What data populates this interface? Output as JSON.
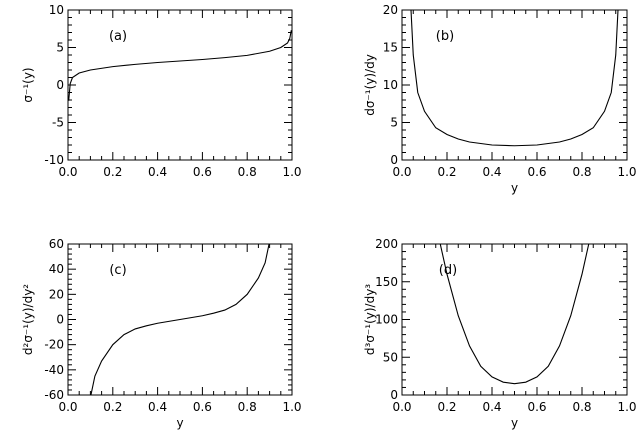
{
  "chart_data": [
    {
      "type": "line",
      "panel_label": "(a)",
      "xlabel": "",
      "ylabel": "σ⁻¹(y)",
      "xlim": [
        0.0,
        1.0
      ],
      "ylim": [
        -10,
        10
      ],
      "xticks": [
        "0.0",
        "0.2",
        "0.4",
        "0.6",
        "0.8",
        "1.0"
      ],
      "yticks": [
        "-10",
        "-5",
        "0",
        "5",
        "10"
      ],
      "xtick_values": [
        0.0,
        0.2,
        0.4,
        0.6,
        0.8,
        1.0
      ],
      "ytick_values": [
        -10,
        -5,
        0,
        5,
        10
      ],
      "series": [
        {
          "color": "#000000",
          "x": [
            0.003,
            0.01,
            0.02,
            0.05,
            0.1,
            0.2,
            0.3,
            0.4,
            0.5,
            0.6,
            0.7,
            0.8,
            0.9,
            0.95,
            0.98,
            0.99,
            0.997
          ],
          "y": [
            -2.1,
            0.2,
            1.0,
            1.6,
            2.0,
            2.45,
            2.75,
            3.0,
            3.2,
            3.4,
            3.65,
            3.95,
            4.5,
            5.0,
            5.6,
            6.2,
            7.3
          ]
        }
      ]
    },
    {
      "type": "line",
      "panel_label": "(b)",
      "xlabel": "y",
      "ylabel": "dσ⁻¹(y)/dy",
      "xlim": [
        0.0,
        1.0
      ],
      "ylim": [
        0,
        20
      ],
      "xticks": [
        "0.0",
        "0.2",
        "0.4",
        "0.6",
        "0.8",
        "1.0"
      ],
      "yticks": [
        "0",
        "5",
        "10",
        "15",
        "20"
      ],
      "xtick_values": [
        0.0,
        0.2,
        0.4,
        0.6,
        0.8,
        1.0
      ],
      "ytick_values": [
        0,
        5,
        10,
        15,
        20
      ],
      "series": [
        {
          "color": "#000000",
          "x": [
            0.04,
            0.05,
            0.07,
            0.1,
            0.15,
            0.2,
            0.25,
            0.3,
            0.4,
            0.5,
            0.6,
            0.7,
            0.75,
            0.8,
            0.85,
            0.9,
            0.93,
            0.95,
            0.96
          ],
          "y": [
            20.0,
            14.0,
            9.0,
            6.5,
            4.3,
            3.4,
            2.8,
            2.4,
            2.0,
            1.9,
            2.0,
            2.4,
            2.8,
            3.4,
            4.3,
            6.5,
            9.0,
            14.0,
            20.0
          ]
        }
      ]
    },
    {
      "type": "line",
      "panel_label": "(c)",
      "xlabel": "y",
      "ylabel": "d²σ⁻¹(y)/dy²",
      "xlim": [
        0.0,
        1.0
      ],
      "ylim": [
        -60,
        60
      ],
      "xticks": [
        "0.0",
        "0.2",
        "0.4",
        "0.6",
        "0.8",
        "1.0"
      ],
      "yticks": [
        "-60",
        "-40",
        "-20",
        "0",
        "20",
        "40",
        "60"
      ],
      "xtick_values": [
        0.0,
        0.2,
        0.4,
        0.6,
        0.8,
        1.0
      ],
      "ytick_values": [
        -60,
        -40,
        -20,
        0,
        20,
        40,
        60
      ],
      "series": [
        {
          "color": "#000000",
          "x": [
            0.1,
            0.12,
            0.15,
            0.2,
            0.25,
            0.3,
            0.35,
            0.4,
            0.45,
            0.5,
            0.55,
            0.6,
            0.65,
            0.7,
            0.75,
            0.8,
            0.85,
            0.88,
            0.9
          ],
          "y": [
            -62,
            -45,
            -33,
            -20,
            -12,
            -7.5,
            -5,
            -3,
            -1.5,
            0,
            1.5,
            3,
            5,
            7.5,
            12,
            20,
            33,
            45,
            62
          ]
        }
      ]
    },
    {
      "type": "line",
      "panel_label": "(d)",
      "xlabel": "y",
      "ylabel": "d³σ⁻¹(y)/dy³",
      "xlim": [
        0.0,
        1.0
      ],
      "ylim": [
        0,
        200
      ],
      "xticks": [
        "0.0",
        "0.2",
        "0.4",
        "0.6",
        "0.8",
        "1.0"
      ],
      "yticks": [
        "0",
        "50",
        "100",
        "150",
        "200"
      ],
      "xtick_values": [
        0.0,
        0.2,
        0.4,
        0.6,
        0.8,
        1.0
      ],
      "ytick_values": [
        0,
        50,
        100,
        150,
        200
      ],
      "series": [
        {
          "color": "#000000",
          "x": [
            0.17,
            0.2,
            0.25,
            0.3,
            0.35,
            0.4,
            0.45,
            0.5,
            0.55,
            0.6,
            0.65,
            0.7,
            0.75,
            0.8,
            0.83
          ],
          "y": [
            200,
            160,
            105,
            65,
            38,
            24,
            17,
            15,
            17,
            24,
            38,
            65,
            105,
            160,
            200
          ]
        }
      ]
    }
  ]
}
